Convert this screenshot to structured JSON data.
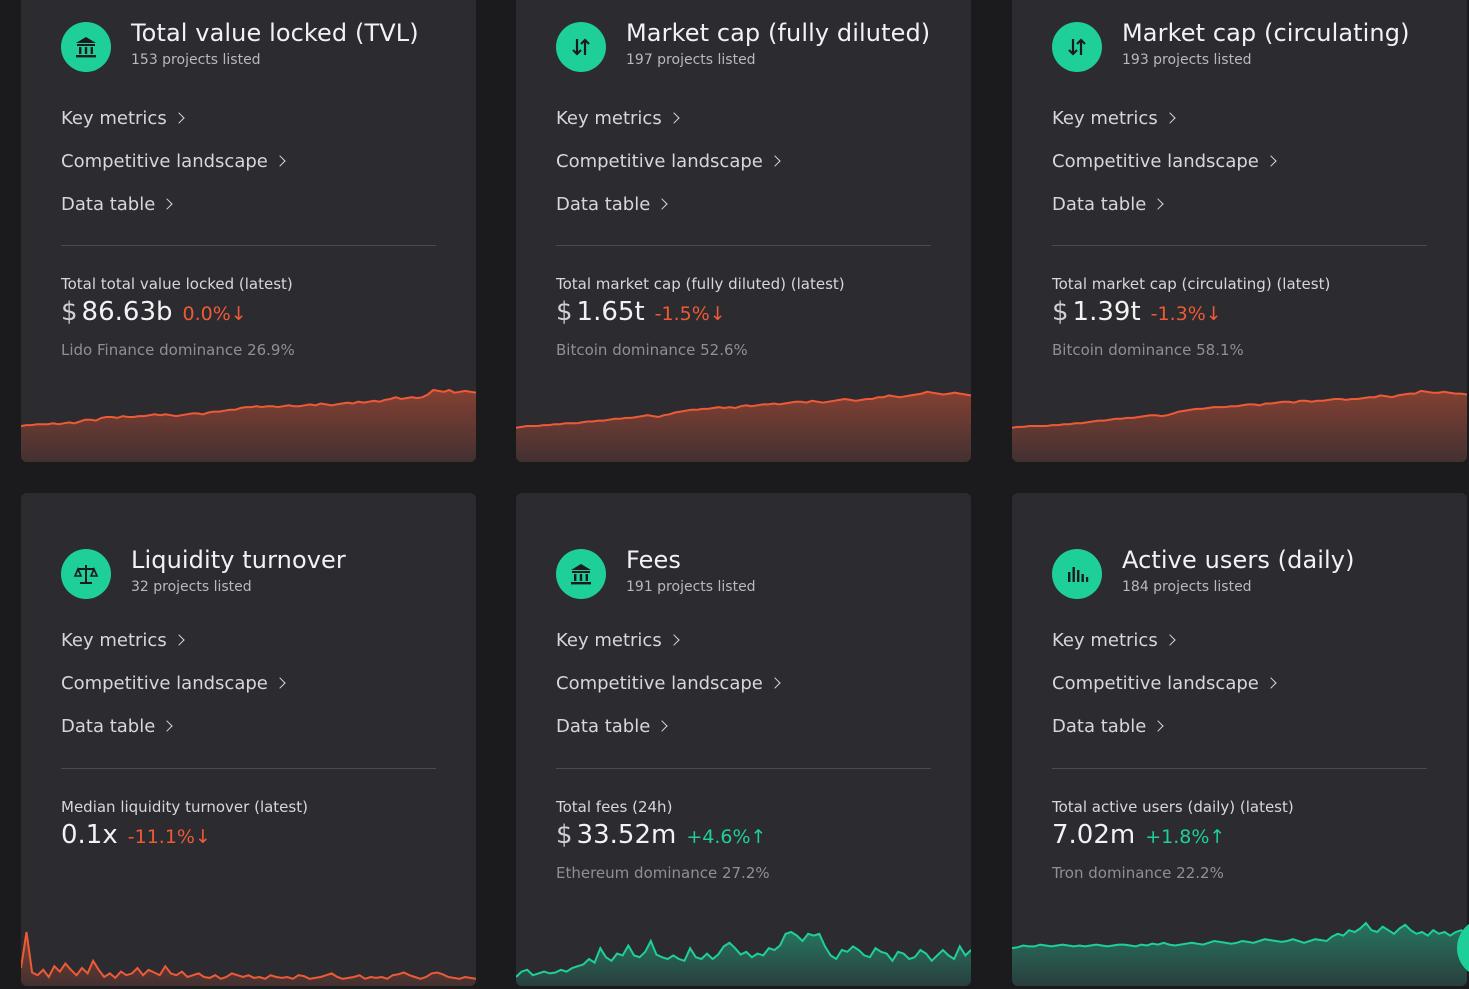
{
  "colors": {
    "accent": "#1fcf9a",
    "negative": "#ef5a36",
    "positive": "#1fcf9a",
    "card": "#2b2b30",
    "background": "#1b1b1e"
  },
  "link_labels": [
    "Key metrics",
    "Competitive landscape",
    "Data table"
  ],
  "cards": [
    {
      "icon": "bank-icon",
      "title": "Total value locked (TVL)",
      "subtitle": "153 projects listed",
      "metric_label": "Total total value locked (latest)",
      "currency": "$",
      "value": "86.63b",
      "change": "0.0%↓",
      "change_dir": "neg",
      "dominance": "Lido Finance dominance 26.9%",
      "spark_color": "#ef5a36",
      "spark": [
        40,
        41,
        41,
        42,
        42,
        42,
        43,
        42,
        43,
        44,
        43,
        45,
        47,
        47,
        46,
        49,
        50,
        50,
        49,
        51,
        50,
        50,
        51,
        51,
        52,
        53,
        52,
        53,
        52,
        51,
        52,
        53,
        54,
        54,
        53,
        55,
        56,
        56,
        57,
        58,
        58,
        60,
        61,
        61,
        62,
        61,
        62,
        62,
        61,
        62,
        63,
        62,
        62,
        63,
        64,
        63,
        65,
        64,
        63,
        64,
        65,
        66,
        65,
        67,
        66,
        67,
        68,
        67,
        69,
        70,
        72,
        70,
        71,
        72,
        71,
        72,
        75,
        80,
        79,
        78,
        80,
        77,
        78,
        79,
        78,
        77
      ]
    },
    {
      "icon": "swap-arrows-icon",
      "title": "Market cap (fully diluted)",
      "subtitle": "197 projects listed",
      "metric_label": "Total market cap (fully diluted) (latest)",
      "currency": "$",
      "value": "1.65t",
      "change": "-1.5%↓",
      "change_dir": "neg",
      "dominance": "Bitcoin dominance 52.6%",
      "spark_color": "#ef5a36",
      "spark": [
        38,
        39,
        40,
        40,
        40,
        41,
        41,
        42,
        42,
        43,
        43,
        43,
        44,
        45,
        45,
        46,
        46,
        47,
        48,
        48,
        49,
        49,
        50,
        51,
        52,
        51,
        50,
        52,
        53,
        55,
        56,
        57,
        58,
        58,
        59,
        59,
        60,
        61,
        60,
        61,
        60,
        62,
        63,
        62,
        63,
        64,
        64,
        65,
        64,
        65,
        66,
        67,
        67,
        66,
        68,
        67,
        66,
        67,
        68,
        69,
        70,
        69,
        68,
        69,
        70,
        70,
        72,
        72,
        74,
        73,
        72,
        73,
        74,
        75,
        76,
        78,
        77,
        76,
        75,
        76,
        77,
        76,
        75,
        74
      ]
    },
    {
      "icon": "swap-arrows-icon",
      "title": "Market cap (circulating)",
      "subtitle": "193 projects listed",
      "metric_label": "Total market cap (circulating) (latest)",
      "currency": "$",
      "value": "1.39t",
      "change": "-1.3%↓",
      "change_dir": "neg",
      "dominance": "Bitcoin dominance 58.1%",
      "spark_color": "#ef5a36",
      "spark": [
        38,
        39,
        39,
        40,
        40,
        40,
        40,
        41,
        41,
        42,
        42,
        43,
        43,
        44,
        45,
        46,
        46,
        47,
        48,
        48,
        49,
        49,
        50,
        51,
        52,
        52,
        51,
        52,
        54,
        56,
        57,
        58,
        59,
        59,
        60,
        61,
        61,
        61,
        62,
        62,
        63,
        64,
        64,
        63,
        65,
        65,
        66,
        67,
        67,
        66,
        68,
        68,
        67,
        68,
        68,
        69,
        70,
        70,
        69,
        70,
        70,
        71,
        72,
        72,
        74,
        73,
        72,
        74,
        75,
        76,
        76,
        79,
        78,
        77,
        77,
        78,
        77,
        76,
        76,
        75
      ]
    },
    {
      "icon": "scales-icon",
      "title": "Liquidity turnover",
      "subtitle": "32 projects listed",
      "metric_label": "Median liquidity turnover (latest)",
      "currency": "",
      "value": "0.1x",
      "change": "-11.1%↓",
      "change_dir": "neg",
      "dominance": "",
      "spark_color": "#ef5a36",
      "spark": [
        20,
        60,
        15,
        12,
        18,
        10,
        22,
        16,
        25,
        18,
        12,
        20,
        14,
        28,
        18,
        10,
        14,
        9,
        16,
        12,
        14,
        20,
        12,
        18,
        15,
        12,
        22,
        14,
        12,
        16,
        10,
        12,
        14,
        10,
        9,
        12,
        8,
        10,
        14,
        12,
        10,
        12,
        9,
        10,
        8,
        12,
        10,
        9,
        10,
        8,
        12,
        11,
        8,
        9,
        10,
        12,
        14,
        10,
        8,
        9,
        10,
        12,
        8,
        10,
        9,
        10,
        8,
        12,
        13,
        15,
        12,
        10,
        8,
        10,
        14,
        15,
        13,
        10,
        9,
        8,
        10,
        9,
        8
      ]
    },
    {
      "icon": "bank-icon",
      "title": "Fees",
      "subtitle": "191 projects listed",
      "metric_label": "Total fees (24h)",
      "currency": "$",
      "value": "33.52m",
      "change": "+4.6%↑",
      "change_dir": "pos",
      "dominance": "Ethereum dominance 27.2%",
      "spark_color": "#1fcf9a",
      "spark": [
        10,
        16,
        18,
        12,
        14,
        16,
        14,
        15,
        18,
        16,
        20,
        22,
        24,
        30,
        26,
        42,
        32,
        28,
        36,
        34,
        45,
        34,
        32,
        38,
        50,
        35,
        32,
        30,
        34,
        30,
        28,
        42,
        32,
        30,
        36,
        30,
        35,
        44,
        48,
        42,
        35,
        38,
        32,
        36,
        34,
        42,
        40,
        45,
        58,
        60,
        56,
        50,
        58,
        56,
        58,
        44,
        34,
        30,
        40,
        38,
        44,
        40,
        34,
        32,
        42,
        38,
        36,
        28,
        38,
        36,
        30,
        32,
        40,
        36,
        28,
        34,
        40,
        34,
        30,
        44,
        34,
        40
      ]
    },
    {
      "icon": "bar-chart-icon",
      "title": "Active users (daily)",
      "subtitle": "184 projects listed",
      "metric_label": "Total active users (daily) (latest)",
      "currency": "",
      "value": "7.02m",
      "change": "+1.8%↑",
      "change_dir": "pos",
      "dominance": "Tron dominance 22.2%",
      "spark_color": "#1fcf9a",
      "spark": [
        42,
        43,
        45,
        44,
        44,
        46,
        45,
        44,
        45,
        46,
        45,
        44,
        45,
        44,
        45,
        46,
        45,
        44,
        45,
        46,
        46,
        45,
        44,
        46,
        45,
        47,
        46,
        48,
        46,
        45,
        46,
        47,
        48,
        47,
        46,
        48,
        50,
        49,
        48,
        47,
        48,
        50,
        49,
        48,
        50,
        52,
        51,
        50,
        49,
        50,
        52,
        50,
        48,
        50,
        52,
        51,
        50,
        55,
        58,
        56,
        62,
        60,
        64,
        70,
        62,
        60,
        66,
        62,
        58,
        64,
        68,
        62,
        58,
        60,
        56,
        62,
        58,
        60,
        56,
        60,
        62,
        56
      ]
    }
  ]
}
